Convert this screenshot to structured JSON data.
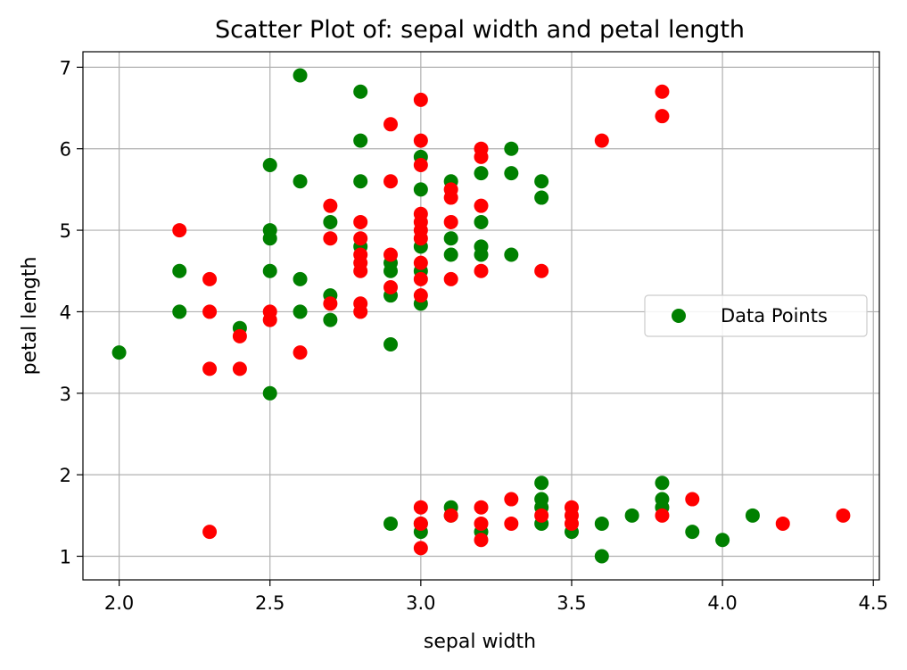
{
  "chart_data": {
    "type": "scatter",
    "title": "Scatter Plot of: sepal width and petal length",
    "xlabel": "sepal width",
    "ylabel": "petal length",
    "xlim": [
      1.88,
      4.52
    ],
    "ylim": [
      0.71,
      7.19
    ],
    "xticks": [
      2.0,
      2.5,
      3.0,
      3.5,
      4.0,
      4.5
    ],
    "yticks": [
      1,
      2,
      3,
      4,
      5,
      6,
      7
    ],
    "xtick_labels": [
      "2.0",
      "2.5",
      "3.0",
      "3.5",
      "4.0",
      "4.5"
    ],
    "ytick_labels": [
      "1",
      "2",
      "3",
      "4",
      "5",
      "6",
      "7"
    ],
    "grid": true,
    "legend": {
      "entries": [
        "Data Points"
      ],
      "placement": "center-right"
    },
    "colors": {
      "green": "#008000",
      "red": "#ff0000"
    },
    "series": [
      {
        "color": "green",
        "points": [
          [
            2.0,
            3.5
          ],
          [
            2.2,
            4.5
          ],
          [
            2.2,
            4.0
          ],
          [
            2.4,
            3.8
          ],
          [
            2.5,
            5.8
          ],
          [
            2.5,
            5.0
          ],
          [
            2.5,
            4.9
          ],
          [
            2.5,
            4.5
          ],
          [
            2.5,
            3.0
          ],
          [
            2.6,
            6.9
          ],
          [
            2.6,
            5.6
          ],
          [
            2.6,
            4.4
          ],
          [
            2.6,
            4.0
          ],
          [
            2.7,
            5.1
          ],
          [
            2.7,
            4.2
          ],
          [
            2.7,
            3.9
          ],
          [
            2.8,
            6.7
          ],
          [
            2.8,
            6.1
          ],
          [
            2.8,
            5.6
          ],
          [
            2.8,
            4.8
          ],
          [
            2.9,
            4.6
          ],
          [
            2.9,
            4.5
          ],
          [
            2.9,
            4.2
          ],
          [
            2.9,
            3.6
          ],
          [
            2.9,
            1.4
          ],
          [
            3.0,
            5.9
          ],
          [
            3.0,
            5.5
          ],
          [
            3.0,
            4.8
          ],
          [
            3.0,
            4.5
          ],
          [
            3.0,
            4.1
          ],
          [
            3.0,
            1.3
          ],
          [
            3.0,
            1.4
          ],
          [
            3.1,
            5.6
          ],
          [
            3.1,
            4.9
          ],
          [
            3.1,
            4.7
          ],
          [
            3.1,
            1.6
          ],
          [
            3.1,
            1.5
          ],
          [
            3.2,
            5.7
          ],
          [
            3.2,
            5.1
          ],
          [
            3.2,
            4.8
          ],
          [
            3.2,
            4.7
          ],
          [
            3.2,
            1.3
          ],
          [
            3.3,
            6.0
          ],
          [
            3.3,
            5.7
          ],
          [
            3.3,
            4.7
          ],
          [
            3.4,
            5.6
          ],
          [
            3.4,
            5.4
          ],
          [
            3.4,
            1.9
          ],
          [
            3.4,
            1.7
          ],
          [
            3.4,
            1.6
          ],
          [
            3.4,
            1.4
          ],
          [
            3.5,
            1.3
          ],
          [
            3.6,
            1.4
          ],
          [
            3.6,
            1.0
          ],
          [
            3.7,
            1.5
          ],
          [
            3.8,
            1.9
          ],
          [
            3.8,
            1.7
          ],
          [
            3.8,
            1.6
          ],
          [
            3.9,
            1.3
          ],
          [
            4.0,
            1.2
          ],
          [
            4.1,
            1.5
          ]
        ]
      },
      {
        "color": "red",
        "points": [
          [
            2.2,
            5.0
          ],
          [
            2.3,
            4.4
          ],
          [
            2.3,
            4.0
          ],
          [
            2.3,
            3.3
          ],
          [
            2.3,
            1.3
          ],
          [
            2.4,
            3.7
          ],
          [
            2.4,
            3.3
          ],
          [
            2.5,
            4.0
          ],
          [
            2.5,
            3.9
          ],
          [
            2.6,
            3.5
          ],
          [
            2.7,
            5.3
          ],
          [
            2.7,
            4.9
          ],
          [
            2.7,
            4.1
          ],
          [
            2.8,
            5.1
          ],
          [
            2.8,
            4.9
          ],
          [
            2.8,
            4.7
          ],
          [
            2.8,
            4.6
          ],
          [
            2.8,
            4.5
          ],
          [
            2.8,
            4.1
          ],
          [
            2.8,
            4.0
          ],
          [
            2.9,
            6.3
          ],
          [
            2.9,
            5.6
          ],
          [
            2.9,
            4.7
          ],
          [
            2.9,
            4.3
          ],
          [
            3.0,
            6.6
          ],
          [
            3.0,
            6.1
          ],
          [
            3.0,
            5.8
          ],
          [
            3.0,
            5.2
          ],
          [
            3.0,
            5.1
          ],
          [
            3.0,
            5.0
          ],
          [
            3.0,
            4.9
          ],
          [
            3.0,
            4.6
          ],
          [
            3.0,
            4.4
          ],
          [
            3.0,
            4.2
          ],
          [
            3.0,
            1.6
          ],
          [
            3.0,
            1.4
          ],
          [
            3.0,
            1.1
          ],
          [
            3.1,
            5.5
          ],
          [
            3.1,
            5.4
          ],
          [
            3.1,
            5.1
          ],
          [
            3.1,
            4.4
          ],
          [
            3.1,
            1.5
          ],
          [
            3.2,
            6.0
          ],
          [
            3.2,
            5.9
          ],
          [
            3.2,
            5.3
          ],
          [
            3.2,
            4.5
          ],
          [
            3.2,
            1.6
          ],
          [
            3.2,
            1.4
          ],
          [
            3.2,
            1.2
          ],
          [
            3.3,
            1.7
          ],
          [
            3.3,
            1.4
          ],
          [
            3.4,
            4.5
          ],
          [
            3.4,
            1.5
          ],
          [
            3.5,
            1.6
          ],
          [
            3.5,
            1.5
          ],
          [
            3.5,
            1.4
          ],
          [
            3.6,
            6.1
          ],
          [
            3.8,
            6.7
          ],
          [
            3.8,
            6.4
          ],
          [
            3.8,
            1.5
          ],
          [
            3.9,
            1.7
          ],
          [
            4.2,
            1.4
          ],
          [
            4.4,
            1.5
          ]
        ]
      }
    ]
  }
}
